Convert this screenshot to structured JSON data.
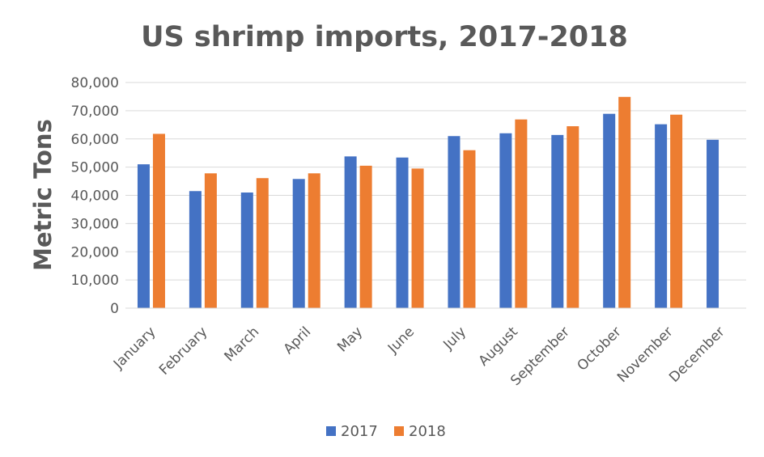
{
  "chart_data": {
    "type": "bar",
    "title": "US shrimp imports, 2017-2018",
    "xlabel": "",
    "ylabel": "Metric Tons",
    "ylim": [
      0,
      80000
    ],
    "yticks": [
      "0",
      "10,000",
      "20,000",
      "30,000",
      "40,000",
      "50,000",
      "60,000",
      "70,000",
      "80,000"
    ],
    "categories": [
      "January",
      "February",
      "March",
      "April",
      "May",
      "June",
      "July",
      "August",
      "September",
      "October",
      "November",
      "December"
    ],
    "series": [
      {
        "name": "2017",
        "color": "#4472c4",
        "values": [
          51000,
          41500,
          41000,
          45800,
          53800,
          53400,
          61000,
          62000,
          61400,
          68900,
          65200,
          59700
        ]
      },
      {
        "name": "2018",
        "color": "#ed7d31",
        "values": [
          61800,
          47800,
          46100,
          47800,
          50500,
          49500,
          56000,
          66900,
          64500,
          74900,
          68600,
          null
        ]
      }
    ],
    "grid": true,
    "legend_position": "bottom"
  }
}
